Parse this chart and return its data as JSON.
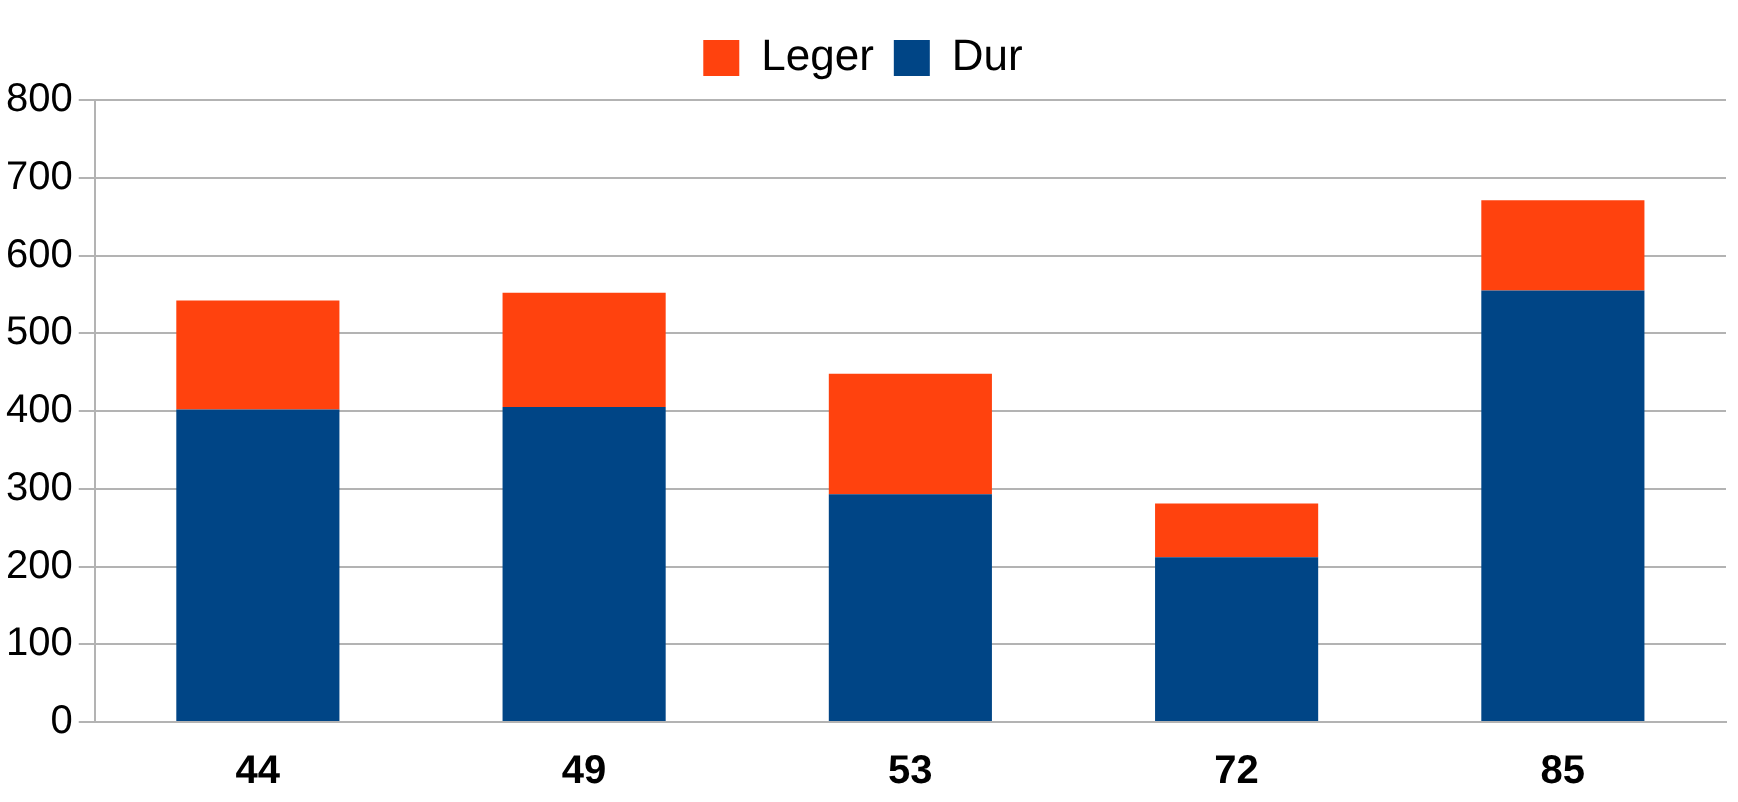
{
  "chart_data": {
    "type": "bar",
    "stacked": true,
    "categories": [
      "44",
      "49",
      "53",
      "72",
      "85"
    ],
    "series": [
      {
        "name": "Dur",
        "color": "#004586",
        "values": [
          402,
          405,
          293,
          212,
          555
        ]
      },
      {
        "name": "Leger",
        "color": "#ff420e",
        "values": [
          140,
          147,
          155,
          69,
          116
        ]
      }
    ],
    "ylim": [
      0,
      800
    ],
    "yticks": [
      0,
      100,
      200,
      300,
      400,
      500,
      600,
      700,
      800
    ],
    "grid": "y",
    "legend": "top"
  }
}
